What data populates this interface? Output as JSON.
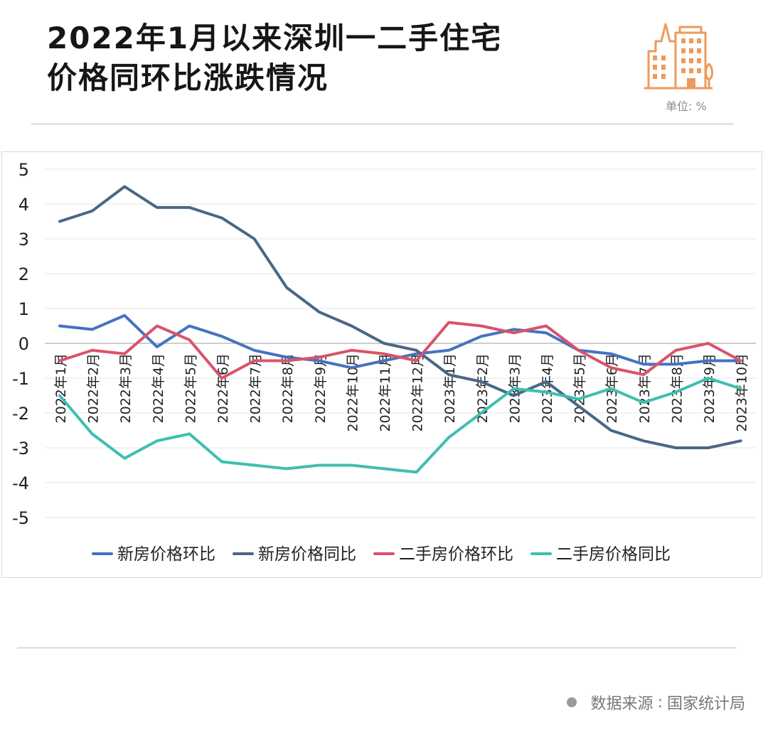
{
  "title": {
    "line1": "2022年1月以来深圳一二手住宅",
    "line2": "价格同环比涨跌情况"
  },
  "unit_label": "单位: %",
  "source": {
    "label": "数据来源",
    "separator": ":",
    "value": "国家统计局"
  },
  "colors": {
    "new_mom": "#4472C4",
    "new_yoy": "#4A6785",
    "used_mom": "#D9536A",
    "used_yoy": "#3DBFB0",
    "icon": "#EE9A5A"
  },
  "icons": [
    "building-icon",
    "source-dot-icon"
  ],
  "chart_data": {
    "type": "line",
    "title": "",
    "xlabel": "",
    "ylabel": "",
    "ylim": [
      -5,
      5
    ],
    "yticks": [
      5,
      4,
      3,
      2,
      1,
      0,
      -1,
      -2,
      -3,
      -4,
      -5
    ],
    "grid": true,
    "legend_position": "bottom",
    "categories": [
      "2022年1月",
      "2022年2月",
      "2022年3月",
      "2022年4月",
      "2022年5月",
      "2022年6月",
      "2022年7月",
      "2022年8月",
      "2022年9月",
      "2022年10月",
      "2022年11月",
      "2022年12月",
      "2023年1月",
      "2023年2月",
      "2023年3月",
      "2023年4月",
      "2023年5月",
      "2023年6月",
      "2023年7月",
      "2023年8月",
      "2023年9月",
      "2023年10月"
    ],
    "series": [
      {
        "name": "新房价格环比",
        "color": "#4472C4",
        "values": [
          0.5,
          0.4,
          0.8,
          -0.1,
          0.5,
          0.2,
          -0.2,
          -0.4,
          -0.5,
          -0.7,
          -0.5,
          -0.3,
          -0.2,
          0.2,
          0.4,
          0.3,
          -0.2,
          -0.3,
          -0.6,
          -0.6,
          -0.5,
          -0.5
        ]
      },
      {
        "name": "新房价格同比",
        "color": "#4A6785",
        "values": [
          3.5,
          3.8,
          4.5,
          3.9,
          3.9,
          3.6,
          3.0,
          1.6,
          0.9,
          0.5,
          0.0,
          -0.2,
          -0.9,
          -1.1,
          -1.5,
          -1.1,
          -1.8,
          -2.5,
          -2.8,
          -3.0,
          -3.0,
          -2.8
        ]
      },
      {
        "name": "二手房价格环比",
        "color": "#D9536A",
        "values": [
          -0.5,
          -0.2,
          -0.3,
          0.5,
          0.1,
          -1.0,
          -0.5,
          -0.5,
          -0.4,
          -0.2,
          -0.3,
          -0.5,
          0.6,
          0.5,
          0.3,
          0.5,
          -0.2,
          -0.7,
          -0.9,
          -0.2,
          0.0,
          -0.5
        ]
      },
      {
        "name": "二手房价格同比",
        "color": "#3DBFB0",
        "values": [
          -1.5,
          -2.6,
          -3.3,
          -2.8,
          -2.6,
          -3.4,
          -3.5,
          -3.6,
          -3.5,
          -3.5,
          -3.6,
          -3.7,
          -2.7,
          -2.0,
          -1.3,
          -1.4,
          -1.6,
          -1.3,
          -1.7,
          -1.4,
          -1.0,
          -1.3
        ]
      }
    ]
  }
}
